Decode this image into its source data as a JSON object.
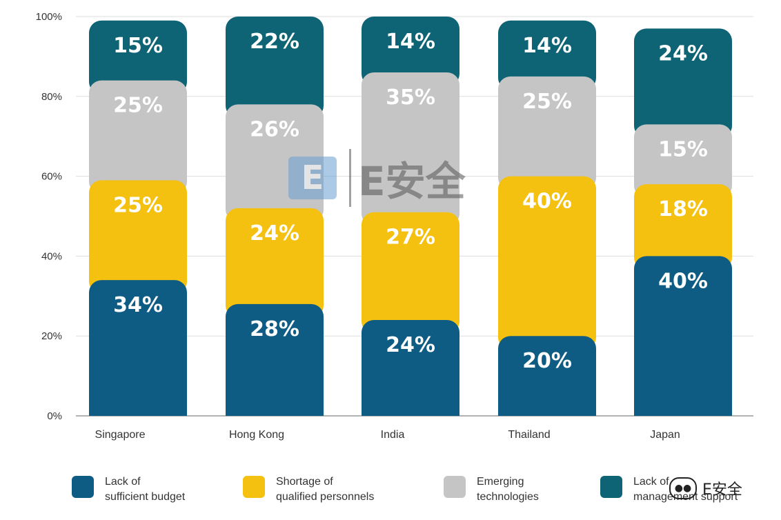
{
  "chart_data": {
    "type": "bar",
    "stacked": true,
    "categories": [
      "Singapore",
      "Hong Kong",
      "India",
      "Thailand",
      "Japan"
    ],
    "ylim": [
      0,
      100
    ],
    "yticks": [
      "0%",
      "20%",
      "40%",
      "60%",
      "80%",
      "100%"
    ],
    "ytick_values": [
      0,
      20,
      40,
      60,
      80,
      100
    ],
    "series": [
      {
        "name": "Lack of sufficient budget",
        "color": "#0e5c84",
        "values": [
          34,
          28,
          24,
          20,
          40
        ],
        "labels": [
          "34%",
          "28%",
          "24%",
          "20%",
          "40%"
        ]
      },
      {
        "name": "Shortage of qualified personnels",
        "color": "#f5c110",
        "values": [
          25,
          24,
          27,
          40,
          18
        ],
        "labels": [
          "25%",
          "24%",
          "27%",
          "40%",
          "18%"
        ]
      },
      {
        "name": "Emerging technologies",
        "color": "#c5c5c5",
        "values": [
          25,
          26,
          35,
          25,
          15
        ],
        "labels": [
          "25%",
          "26%",
          "35%",
          "25%",
          "15%"
        ]
      },
      {
        "name": "Lack of management support",
        "color": "#0e6474",
        "values": [
          15,
          22,
          14,
          14,
          24
        ],
        "labels": [
          "15%",
          "22%",
          "14%",
          "14%",
          "24%"
        ]
      }
    ],
    "grid": true,
    "legend_position": "bottom"
  },
  "legend": [
    {
      "line1": "Lack of",
      "line2": "sufficient budget",
      "color": "#0e5c84"
    },
    {
      "line1": "Shortage of",
      "line2": "qualified personnels",
      "color": "#f5c110"
    },
    {
      "line1": "Emerging",
      "line2": "technologies",
      "color": "#c5c5c5"
    },
    {
      "line1": "Lack of",
      "line2": "management support",
      "color": "#0e6474"
    }
  ],
  "watermark": {
    "icon_letter": "E",
    "text": "E安全"
  },
  "corner_mark": {
    "text": "E安全"
  }
}
